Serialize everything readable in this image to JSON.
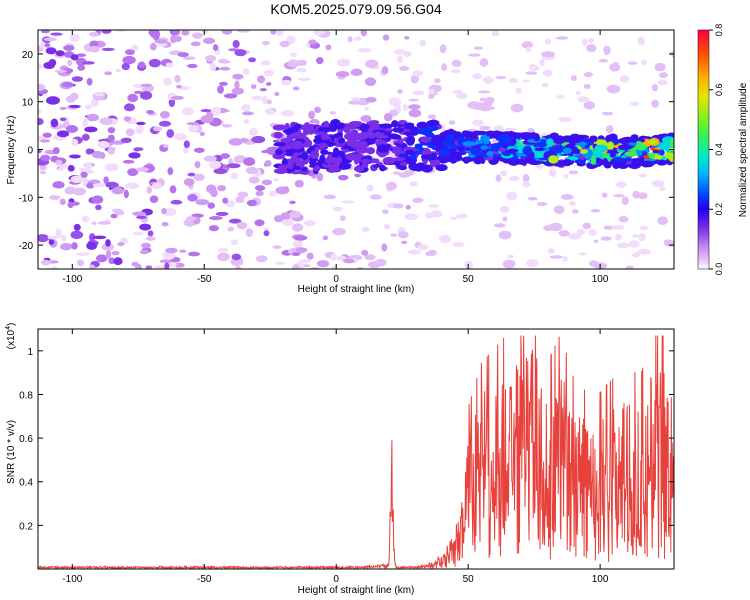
{
  "title": "KOM5.2025.079.09.56.G04",
  "chart_data": [
    {
      "type": "heatmap",
      "xlabel": "Height of straight line (km)",
      "ylabel": "Frequency (Hz)",
      "xlim": [
        -113,
        128
      ],
      "ylim": [
        -25,
        25
      ],
      "x_ticks": [
        -100,
        -50,
        0,
        50,
        100
      ],
      "y_ticks": [
        -20,
        -10,
        0,
        10,
        20
      ],
      "colorbar": {
        "label": "Normalized spectral amplitude",
        "range": [
          0.0,
          0.8
        ],
        "ticks": [
          "0.0",
          "0.2",
          "0.4",
          "0.6",
          "0.8"
        ]
      },
      "ridge": {
        "description_points": [
          [
            -20,
            0
          ],
          [
            0,
            0.5
          ],
          [
            20,
            1
          ],
          [
            40,
            1
          ],
          [
            60,
            0.5
          ],
          [
            80,
            0
          ],
          [
            100,
            -0.5
          ],
          [
            128,
            0
          ]
        ]
      }
    },
    {
      "type": "line",
      "xlabel": "Height of straight line (km)",
      "ylabel": "SNR (10 * v/v)",
      "y_multiplier": "(x10",
      "y_multiplier_exp": "4",
      "y_multiplier_close": ")",
      "xlim": [
        -113,
        128
      ],
      "ylim": [
        0,
        1.1
      ],
      "x_ticks": [
        -100,
        -50,
        0,
        50,
        100
      ],
      "y_ticks": [
        0.2,
        0.4,
        0.6,
        0.8,
        1.0
      ],
      "series": [
        {
          "color": "#e8413c",
          "x": [
            -113,
            -100,
            -80,
            -60,
            -40,
            -20,
            0,
            10,
            20,
            21,
            22,
            23,
            25,
            30,
            35,
            40,
            45,
            48,
            50,
            55,
            60,
            65,
            70,
            75,
            80,
            85,
            90,
            95,
            100,
            105,
            110,
            115,
            120,
            125,
            128
          ],
          "y": [
            0.01,
            0.01,
            0.01,
            0.01,
            0.01,
            0.01,
            0.01,
            0.01,
            0.02,
            0.57,
            0.06,
            0.01,
            0.01,
            0.01,
            0.02,
            0.05,
            0.12,
            0.3,
            0.55,
            0.7,
            0.75,
            0.8,
            0.85,
            0.9,
            0.7,
            0.8,
            0.65,
            0.6,
            0.6,
            0.65,
            0.7,
            0.65,
            0.8,
            0.9,
            0.75
          ]
        }
      ]
    }
  ]
}
